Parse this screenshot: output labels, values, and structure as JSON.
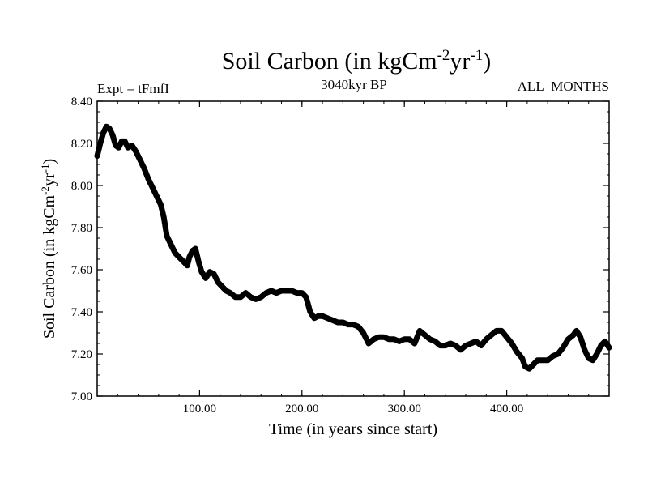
{
  "chart_data": {
    "type": "line",
    "title_main": "Soil Carbon (in kgCm",
    "title_sup1": "-2",
    "title_mid": "yr",
    "title_sup2": "-1",
    "title_end": ")",
    "subtitle_left": "Expt = tFmfI",
    "subtitle_center": "3040kyr BP",
    "subtitle_right": "ALL_MONTHS",
    "xlabel": "Time (in years since start)",
    "ylabel_main": "Soil Carbon (in kgCm",
    "ylabel_sup1": "-2",
    "ylabel_mid": "yr",
    "ylabel_sup2": "-1",
    "ylabel_end": ")",
    "xlim": [
      0,
      500
    ],
    "ylim": [
      7.0,
      8.4
    ],
    "xticks": [
      100,
      200,
      300,
      400
    ],
    "xtick_labels": [
      "100.00",
      "200.00",
      "300.00",
      "400.00"
    ],
    "yticks": [
      7.0,
      7.2,
      7.4,
      7.6,
      7.8,
      8.0,
      8.2,
      8.4
    ],
    "ytick_labels": [
      "7.00",
      "7.20",
      "7.40",
      "7.60",
      "7.80",
      "8.00",
      "8.20",
      "8.40"
    ],
    "series": [
      {
        "name": "Soil Carbon",
        "color": "#000000",
        "x": [
          0,
          3,
          6,
          9,
          12,
          15,
          18,
          21,
          24,
          27,
          30,
          34,
          38,
          42,
          46,
          50,
          54,
          58,
          62,
          65,
          68,
          72,
          76,
          80,
          84,
          88,
          90,
          93,
          96,
          99,
          102,
          106,
          110,
          114,
          118,
          122,
          126,
          130,
          135,
          140,
          145,
          150,
          155,
          160,
          165,
          170,
          175,
          180,
          185,
          190,
          195,
          200,
          204,
          208,
          212,
          216,
          220,
          225,
          230,
          235,
          240,
          245,
          250,
          255,
          260,
          265,
          270,
          275,
          280,
          285,
          290,
          295,
          300,
          305,
          310,
          315,
          320,
          325,
          330,
          335,
          340,
          345,
          350,
          355,
          360,
          365,
          370,
          375,
          380,
          385,
          390,
          395,
          400,
          405,
          410,
          415,
          418,
          422,
          426,
          430,
          435,
          440,
          445,
          450,
          455,
          460,
          465,
          468,
          472,
          476,
          480,
          484,
          488,
          492,
          496,
          500
        ],
        "y": [
          8.14,
          8.2,
          8.25,
          8.28,
          8.27,
          8.24,
          8.19,
          8.18,
          8.21,
          8.21,
          8.18,
          8.19,
          8.16,
          8.12,
          8.08,
          8.03,
          7.99,
          7.95,
          7.91,
          7.85,
          7.76,
          7.72,
          7.68,
          7.66,
          7.64,
          7.62,
          7.66,
          7.69,
          7.7,
          7.64,
          7.59,
          7.56,
          7.59,
          7.58,
          7.54,
          7.52,
          7.5,
          7.49,
          7.47,
          7.47,
          7.49,
          7.47,
          7.46,
          7.47,
          7.49,
          7.5,
          7.49,
          7.5,
          7.5,
          7.5,
          7.49,
          7.49,
          7.47,
          7.4,
          7.37,
          7.38,
          7.38,
          7.37,
          7.36,
          7.35,
          7.35,
          7.34,
          7.34,
          7.33,
          7.3,
          7.25,
          7.27,
          7.28,
          7.28,
          7.27,
          7.27,
          7.26,
          7.27,
          7.27,
          7.25,
          7.31,
          7.29,
          7.27,
          7.26,
          7.24,
          7.24,
          7.25,
          7.24,
          7.22,
          7.24,
          7.25,
          7.26,
          7.24,
          7.27,
          7.29,
          7.31,
          7.31,
          7.28,
          7.25,
          7.21,
          7.18,
          7.14,
          7.13,
          7.15,
          7.17,
          7.17,
          7.17,
          7.19,
          7.2,
          7.23,
          7.27,
          7.29,
          7.31,
          7.28,
          7.22,
          7.18,
          7.17,
          7.2,
          7.24,
          7.26,
          7.23
        ]
      }
    ]
  }
}
